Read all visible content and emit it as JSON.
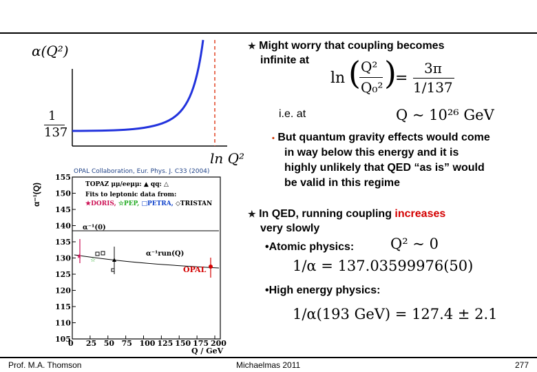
{
  "sketch": {
    "y_label": "α(Q²)",
    "y_tick_num": "1",
    "y_tick_den": "137",
    "x_label": "ln Q²"
  },
  "opal_plot": {
    "caption": "OPAL Collaboration, Eur. Phys. J. C33 (2004)",
    "y_axis_label": "α⁻¹(Q)",
    "y_ticks": [
      "155",
      "150",
      "145",
      "140",
      "135",
      "130",
      "125",
      "120",
      "115",
      "110",
      "105"
    ],
    "x_ticks": [
      "0",
      "25",
      "50",
      "75",
      "100",
      "125",
      "150",
      "175",
      "200"
    ],
    "x_axis_label": "Q / GeV",
    "legend_line1": "TOPAZ μμ/eeμμ: ▲  qq: △",
    "legend_line2": "Fits to leptonic data from:",
    "legend_line3_a": "★DORIS,",
    "legend_line3_b": "☆PEP,",
    "legend_line3_c": "□PETRA,",
    "legend_line3_d": "◇TRISTAN",
    "alpha0_label": "α⁻¹(0)",
    "run_label": "α⁻¹run(Q)",
    "opal_tag": "OPAL"
  },
  "text": {
    "b1": "Might worry that coupling becomes",
    "b1b": "infinite at",
    "eq1_lhs": "ln",
    "eq1_num": "Q²",
    "eq1_den": "Q₀²",
    "eq1_eq": "=",
    "eq1_rnum": "3π",
    "eq1_rden": "1/137",
    "ie": "i.e. at",
    "eq2": "Q ~ 10²⁶ GeV",
    "b2_l1": "But quantum gravity effects would come",
    "b2_l2": "in way below this energy and it is",
    "b2_l3": "highly unlikely that QED “as is” would",
    "b2_l4": "be valid in this regime",
    "b3_a": "In QED, running coupling ",
    "b3_b": "increases",
    "b3_c": "very slowly",
    "atomic": "•Atomic physics:",
    "eq3": "Q² ~ 0",
    "eq4": "1/α = 137.03599976(50)",
    "high": "•High energy physics:",
    "eq5": "1/α(193 GeV) = 127.4 ± 2.1"
  },
  "footer": {
    "left": "Prof. M.A. Thomson",
    "center": "Michaelmas 2011",
    "page": "277"
  },
  "colors": {
    "curve": "#2233dd",
    "dashed": "#e04020",
    "red": "#d40000"
  }
}
